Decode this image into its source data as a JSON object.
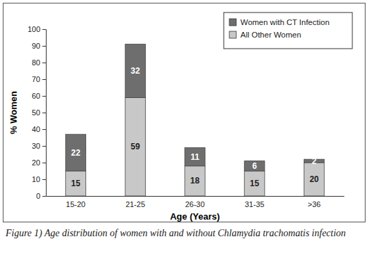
{
  "chart_data": {
    "type": "bar",
    "stacked": true,
    "title": "Figure 1) Age distribution of women with and without Chlamydia trachomatis infection",
    "x_label": "Age (Years)",
    "y_label": "% Women",
    "categories": [
      "15-20",
      "21-25",
      "26-30",
      "31-35",
      ">36"
    ],
    "series": [
      {
        "name": "All Other Women",
        "color": "#c8c8c8",
        "values": [
          15,
          59,
          18,
          15,
          20
        ]
      },
      {
        "name": "Women with CT Infection",
        "color": "#6e6e6e",
        "values": [
          22,
          32,
          11,
          6,
          2
        ]
      }
    ],
    "ylim": [
      0,
      100
    ],
    "yticks": [
      0,
      10,
      20,
      30,
      40,
      50,
      60,
      70,
      80,
      90,
      100
    ],
    "grid": false,
    "legend": "upper right",
    "data_labels": true
  }
}
